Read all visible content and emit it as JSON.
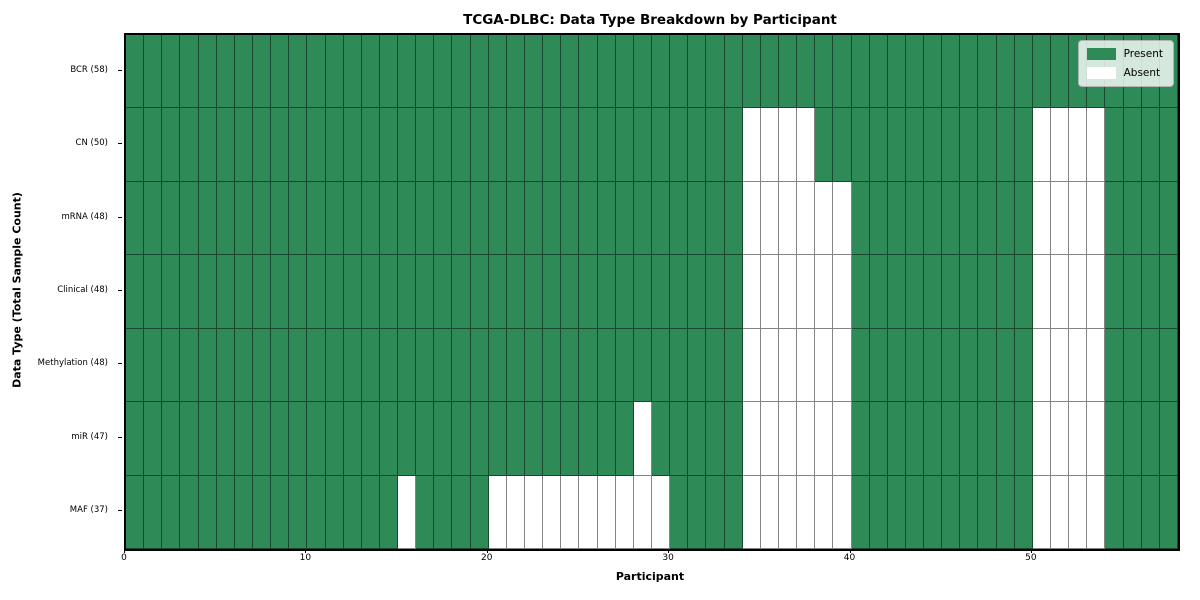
{
  "chart_data": {
    "type": "heatmap",
    "title": "TCGA-DLBC: Data Type Breakdown by Participant",
    "xlabel": "Participant",
    "ylabel": "Data Type (Total Sample Count)",
    "n_participants": 58,
    "x_ticks": [
      0,
      10,
      20,
      30,
      40,
      50
    ],
    "grid_on": true,
    "legend_position": "upper-right",
    "colors": {
      "present": "#2E8B57",
      "absent": "#FFFFFF"
    },
    "legend": [
      {
        "label": "Present",
        "color": "#2E8B57"
      },
      {
        "label": "Absent",
        "color": "#FFFFFF"
      }
    ],
    "rows": [
      {
        "label": "BCR (58)",
        "present_count": 58,
        "absent_cols": []
      },
      {
        "label": "CN (50)",
        "present_count": 50,
        "absent_cols": [
          34,
          35,
          36,
          37,
          50,
          51,
          52,
          53
        ]
      },
      {
        "label": "mRNA (48)",
        "present_count": 48,
        "absent_cols": [
          34,
          35,
          36,
          37,
          38,
          39,
          50,
          51,
          52,
          53
        ]
      },
      {
        "label": "Clinical (48)",
        "present_count": 48,
        "absent_cols": [
          34,
          35,
          36,
          37,
          38,
          39,
          50,
          51,
          52,
          53
        ]
      },
      {
        "label": "Methylation (48)",
        "present_count": 48,
        "absent_cols": [
          34,
          35,
          36,
          37,
          38,
          39,
          50,
          51,
          52,
          53
        ]
      },
      {
        "label": "miR (47)",
        "present_count": 47,
        "absent_cols": [
          28,
          34,
          35,
          36,
          37,
          38,
          39,
          50,
          51,
          52,
          53
        ]
      },
      {
        "label": "MAF (37)",
        "present_count": 37,
        "absent_cols": [
          15,
          20,
          21,
          22,
          23,
          24,
          25,
          26,
          27,
          28,
          29,
          34,
          35,
          36,
          37,
          38,
          39,
          50,
          51,
          52,
          53
        ]
      }
    ]
  }
}
